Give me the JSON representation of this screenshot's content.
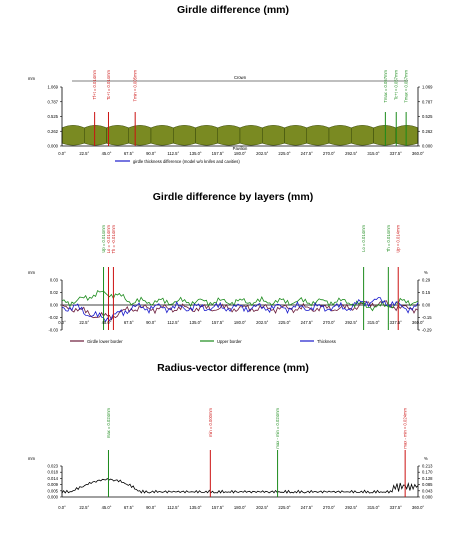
{
  "colors": {
    "olive": "#5a6a12",
    "olive_light": "#7a8a22",
    "red": "#cc1111",
    "green": "#1a8a1a",
    "blue": "#1a1acc",
    "dark_red": "#6a1a3a",
    "axis": "#000000"
  },
  "chart_data": [
    {
      "type": "area",
      "title": "Girdle difference (mm)",
      "ylabel": "mm",
      "y_right_label": "",
      "yticks": [
        "1.069",
        "0.787",
        "0.525",
        "0.262",
        "0.000"
      ],
      "yticks_right": [
        "1.069",
        "0.787",
        "0.525",
        "0.262",
        "0.000"
      ],
      "ylim": [
        0,
        1.069
      ],
      "xticks": [
        "0.0°",
        "22.5°",
        "45.0°",
        "67.5°",
        "90.0°",
        "112.5°",
        "135.0°",
        "157.5°",
        "180.0°",
        "202.5°",
        "225.0°",
        "247.5°",
        "270.0°",
        "292.5°",
        "315.0°",
        "337.5°",
        "360.0°"
      ],
      "xlim": [
        0,
        360
      ],
      "crown_label": "Crown",
      "pavilion_label": "Pavilion",
      "legend": "girdle thickness difference (model w/o knifes and cavities)",
      "girdle_band": [
        0.05,
        0.33
      ],
      "markers": [
        {
          "x": 33,
          "label": "Tf+t = 0.014mm",
          "color": "red"
        },
        {
          "x": 47,
          "label": "Tc+t = 0.014mm",
          "color": "red"
        },
        {
          "x": 74,
          "label": "Tmin = 0.005mm",
          "color": "red"
        },
        {
          "x": 327,
          "label": "Tmax = 0.057mm",
          "color": "green"
        },
        {
          "x": 338,
          "label": "Tc+t = 0.057mm",
          "color": "green"
        },
        {
          "x": 348,
          "label": "Tmax = 0.057mm",
          "color": "green"
        }
      ]
    },
    {
      "type": "line",
      "title": "Girdle difference by layers (mm)",
      "ylabel": "mm",
      "y_right_label": "%",
      "yticks": [
        "0.03",
        "0.02",
        "0.00",
        "-0.02",
        "-0.03"
      ],
      "yticks_right": [
        "0.29",
        "0.15",
        "0.00",
        "-0.15",
        "-0.29"
      ],
      "ylim": [
        -0.03,
        0.03
      ],
      "xticks": [
        "0.0°",
        "22.5°",
        "45.0°",
        "67.5°",
        "90.0°",
        "112.5°",
        "135.0°",
        "157.5°",
        "180.0°",
        "202.5°",
        "225.0°",
        "247.5°",
        "270.0°",
        "292.5°",
        "315.0°",
        "337.5°",
        "360.0°"
      ],
      "xlim": [
        0,
        360
      ],
      "series": [
        {
          "name": "Girdle lower border",
          "color": "dark_red"
        },
        {
          "name": "Upper border",
          "color": "green"
        },
        {
          "name": "Thickness",
          "color": "blue"
        }
      ],
      "markers": [
        {
          "x": 42,
          "label": "Up = 0.014mm",
          "color": "green"
        },
        {
          "x": 47,
          "label": "Lo = -0.014mm",
          "color": "red"
        },
        {
          "x": 52,
          "label": "Th = -0.014mm",
          "color": "red"
        },
        {
          "x": 305,
          "label": "Lo = 0.014mm",
          "color": "green"
        },
        {
          "x": 330,
          "label": "Th = 0.014mm",
          "color": "green"
        },
        {
          "x": 340,
          "label": "Up = 0.014mm",
          "color": "red"
        }
      ]
    },
    {
      "type": "line",
      "title": "Radius-vector difference (mm)",
      "ylabel": "mm",
      "y_right_label": "%",
      "yticks": [
        "0.023",
        "0.018",
        "0.014",
        "0.009",
        "0.005",
        "0.000"
      ],
      "yticks_right": [
        "0.213",
        "0.170",
        "0.128",
        "0.085",
        "0.043",
        "0.000"
      ],
      "ylim": [
        0,
        0.023
      ],
      "xticks": [
        "0.0°",
        "22.5°",
        "45.0°",
        "67.5°",
        "90.0°",
        "112.5°",
        "135.0°",
        "157.5°",
        "180.0°",
        "202.5°",
        "225.0°",
        "247.5°",
        "270.0°",
        "292.5°",
        "315.0°",
        "337.5°",
        "360.0°"
      ],
      "xlim": [
        0,
        360
      ],
      "series": [
        {
          "name": "",
          "color": "axis"
        }
      ],
      "markers": [
        {
          "x": 47,
          "label": "max = 0.024mm",
          "color": "green"
        },
        {
          "x": 150,
          "label": "min = 0.000mm",
          "color": "red"
        },
        {
          "x": 218,
          "label": "max - min = 0.024mm",
          "color": "green"
        },
        {
          "x": 347,
          "label": "max - min = 0.024mm",
          "color": "red"
        }
      ]
    }
  ]
}
